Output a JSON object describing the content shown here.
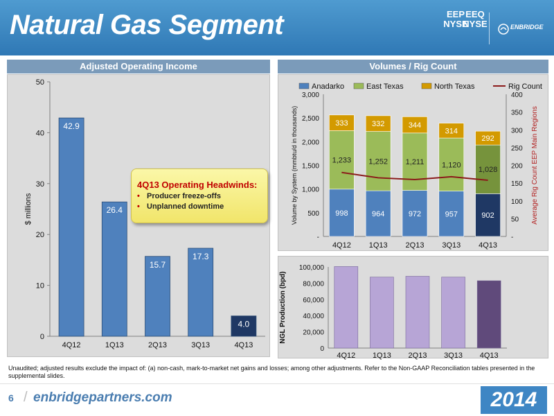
{
  "header": {
    "title": "Natural Gas Segment",
    "ticker_eep": {
      "symbol": "EEP",
      "exchange": "NYSE"
    },
    "ticker_eeq": {
      "symbol": "EEQ",
      "exchange": "NYSE"
    },
    "logo_name": "ENBRIDGE"
  },
  "panels": {
    "left_title": "Adjusted Operating Income",
    "right_title": "Volumes / Rig Count"
  },
  "callout": {
    "title": "4Q13 Operating Headwinds:",
    "items": [
      "Producer freeze-offs",
      "Unplanned downtime"
    ]
  },
  "footnote": "Unaudited; adjusted results exclude the impact of: (a) non-cash, mark-to-market net gains and losses; among other adjustments. Refer to the Non-GAAP Reconciliation tables presented in the supplemental slides.",
  "footer": {
    "page_number": "6",
    "site": "enbridgepartners.com",
    "year": "2014"
  },
  "colors": {
    "header_blue": "#2f78b5",
    "bar_blue": "#4f81bd",
    "bar_blue_last": "#1f3864",
    "east_texas_green": "#9bbb59",
    "north_texas_orange": "#d39a00",
    "rig_count_red": "#8b1a1a",
    "ngl_purple": "#b7a5d6",
    "ngl_purple_last": "#604a7b",
    "callout_title_red": "#c00000"
  },
  "chart_data": [
    {
      "type": "bar",
      "categories": [
        "4Q12",
        "1Q13",
        "2Q13",
        "3Q13",
        "4Q13"
      ],
      "values": [
        42.9,
        26.4,
        15.7,
        17.3,
        4.0
      ],
      "value_labels": [
        "42.9",
        "26.4",
        "15.7",
        "17.3",
        "4.0"
      ],
      "ylabel": "$ millions",
      "ylim": [
        0,
        50
      ],
      "yticks": [
        "0",
        "10",
        "20",
        "30",
        "40",
        "50"
      ],
      "grid": false
    },
    {
      "type": "bar",
      "stacked": true,
      "categories": [
        "4Q12",
        "1Q13",
        "2Q13",
        "3Q13",
        "4Q13"
      ],
      "series": [
        {
          "name": "Anadarko",
          "values": [
            998,
            964,
            972,
            957,
            902
          ],
          "labels": [
            "998",
            "964",
            "972",
            "957",
            "902"
          ]
        },
        {
          "name": "East Texas",
          "values": [
            1233,
            1252,
            1211,
            1120,
            1028
          ],
          "labels": [
            "1,233",
            "1,252",
            "1,211",
            "1,120",
            "1,028"
          ]
        },
        {
          "name": "North Texas",
          "values": [
            333,
            332,
            344,
            314,
            292
          ],
          "labels": [
            "333",
            "332",
            "344",
            "314",
            "292"
          ]
        }
      ],
      "line_series": {
        "name": "Rig Count",
        "axis": "right",
        "values": [
          180,
          165,
          160,
          168,
          158
        ]
      },
      "ylabel": "Volume by System (mmbtu/d in thousands)",
      "ylim": [
        0,
        3000
      ],
      "yticks": [
        "-",
        "500",
        "1,000",
        "1,500",
        "2,000",
        "2,500",
        "3,000"
      ],
      "y2label": "Average Rig Count EEP Main Regions",
      "y2lim": [
        0,
        400
      ],
      "y2ticks": [
        "-",
        "50",
        "100",
        "150",
        "200",
        "250",
        "300",
        "350",
        "400"
      ],
      "legend": "top",
      "grid": false
    },
    {
      "type": "bar",
      "categories": [
        "4Q12",
        "1Q13",
        "2Q13",
        "3Q13",
        "4Q13"
      ],
      "values": [
        100500,
        87500,
        88500,
        87500,
        83000
      ],
      "ylabel": "NGL Production (bpd)",
      "ylim": [
        0,
        100000
      ],
      "yticks": [
        "0",
        "20,000",
        "40,000",
        "60,000",
        "80,000",
        "100,000"
      ],
      "grid": false
    }
  ]
}
